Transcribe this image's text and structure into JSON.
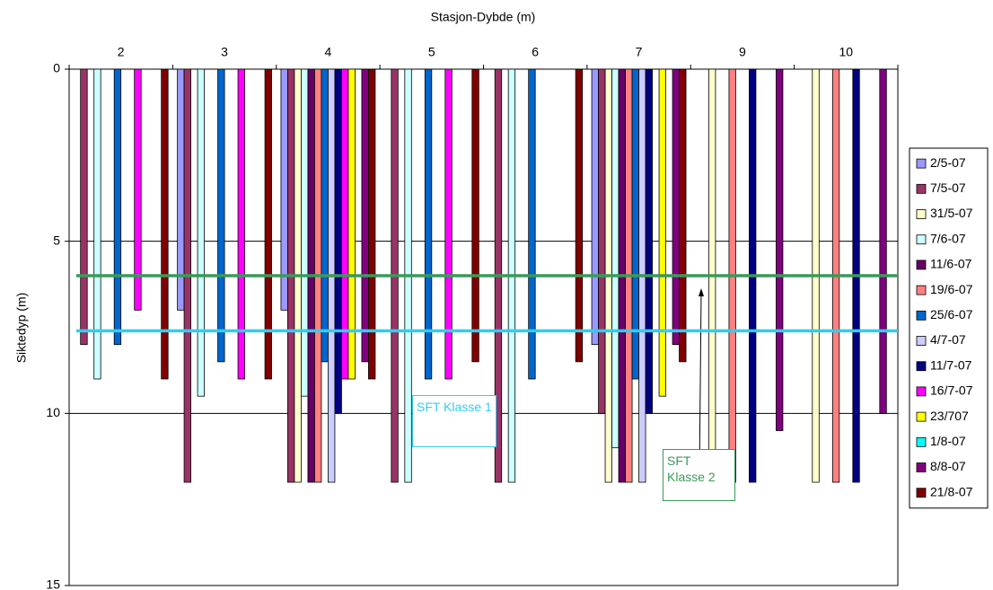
{
  "chart_data": {
    "type": "bar",
    "x_label": "Stasjon-Dybde (m)",
    "y_label": "Siktedyp (m)",
    "categories": [
      "2",
      "3",
      "4",
      "5",
      "6",
      "7",
      "9",
      "10"
    ],
    "ylim": [
      0,
      15
    ],
    "yticks": [
      0,
      5,
      10,
      15
    ],
    "y_inverted": true,
    "grid": true,
    "legend": "right",
    "series": [
      {
        "name": "2/5-07",
        "color": "#9999ff",
        "values": [
          null,
          7,
          7,
          null,
          null,
          8,
          null,
          null
        ]
      },
      {
        "name": "7/5-07",
        "color": "#993366",
        "values": [
          8,
          12,
          12,
          12,
          12,
          10,
          null,
          null
        ]
      },
      {
        "name": "31/5-07",
        "color": "#ffffcc",
        "values": [
          null,
          null,
          12,
          null,
          null,
          12,
          12,
          12
        ]
      },
      {
        "name": "7/6-07",
        "color": "#ccffff",
        "values": [
          9,
          9.5,
          9.5,
          12,
          12,
          11,
          null,
          null
        ]
      },
      {
        "name": "11/6-07",
        "color": "#660066",
        "values": [
          null,
          null,
          12,
          null,
          null,
          12,
          null,
          null
        ]
      },
      {
        "name": "19/6-07",
        "color": "#ff8080",
        "values": [
          null,
          null,
          12,
          null,
          null,
          12,
          12,
          12
        ]
      },
      {
        "name": "25/6-07",
        "color": "#0066cc",
        "values": [
          8,
          8.5,
          8.5,
          9,
          9,
          9,
          null,
          null
        ]
      },
      {
        "name": "4/7-07",
        "color": "#ccccff",
        "values": [
          null,
          null,
          12,
          null,
          null,
          12,
          null,
          null
        ]
      },
      {
        "name": "11/7-07",
        "color": "#000080",
        "values": [
          null,
          null,
          10,
          null,
          null,
          10,
          12,
          12
        ]
      },
      {
        "name": "16/7-07",
        "color": "#ff00ff",
        "values": [
          7,
          9,
          9,
          9,
          null,
          null,
          null,
          null
        ]
      },
      {
        "name": "23/707",
        "color": "#ffff00",
        "values": [
          null,
          null,
          9,
          null,
          null,
          9.5,
          null,
          null
        ]
      },
      {
        "name": "1/8-07",
        "color": "#00ffff",
        "values": [
          null,
          null,
          null,
          null,
          null,
          null,
          null,
          null
        ]
      },
      {
        "name": "8/8-07",
        "color": "#800080",
        "values": [
          null,
          null,
          8.5,
          null,
          null,
          8,
          10.5,
          10
        ]
      },
      {
        "name": "21/8-07",
        "color": "#800000",
        "values": [
          9,
          9,
          9,
          8.5,
          8.5,
          8.5,
          null,
          null
        ]
      }
    ],
    "reference_lines": [
      {
        "label": "SFT Klasse 2",
        "value": 6,
        "color": "#3a9a5a"
      },
      {
        "label": "SFT Klasse 1",
        "value": 7.6,
        "color": "#33ccee"
      }
    ]
  }
}
